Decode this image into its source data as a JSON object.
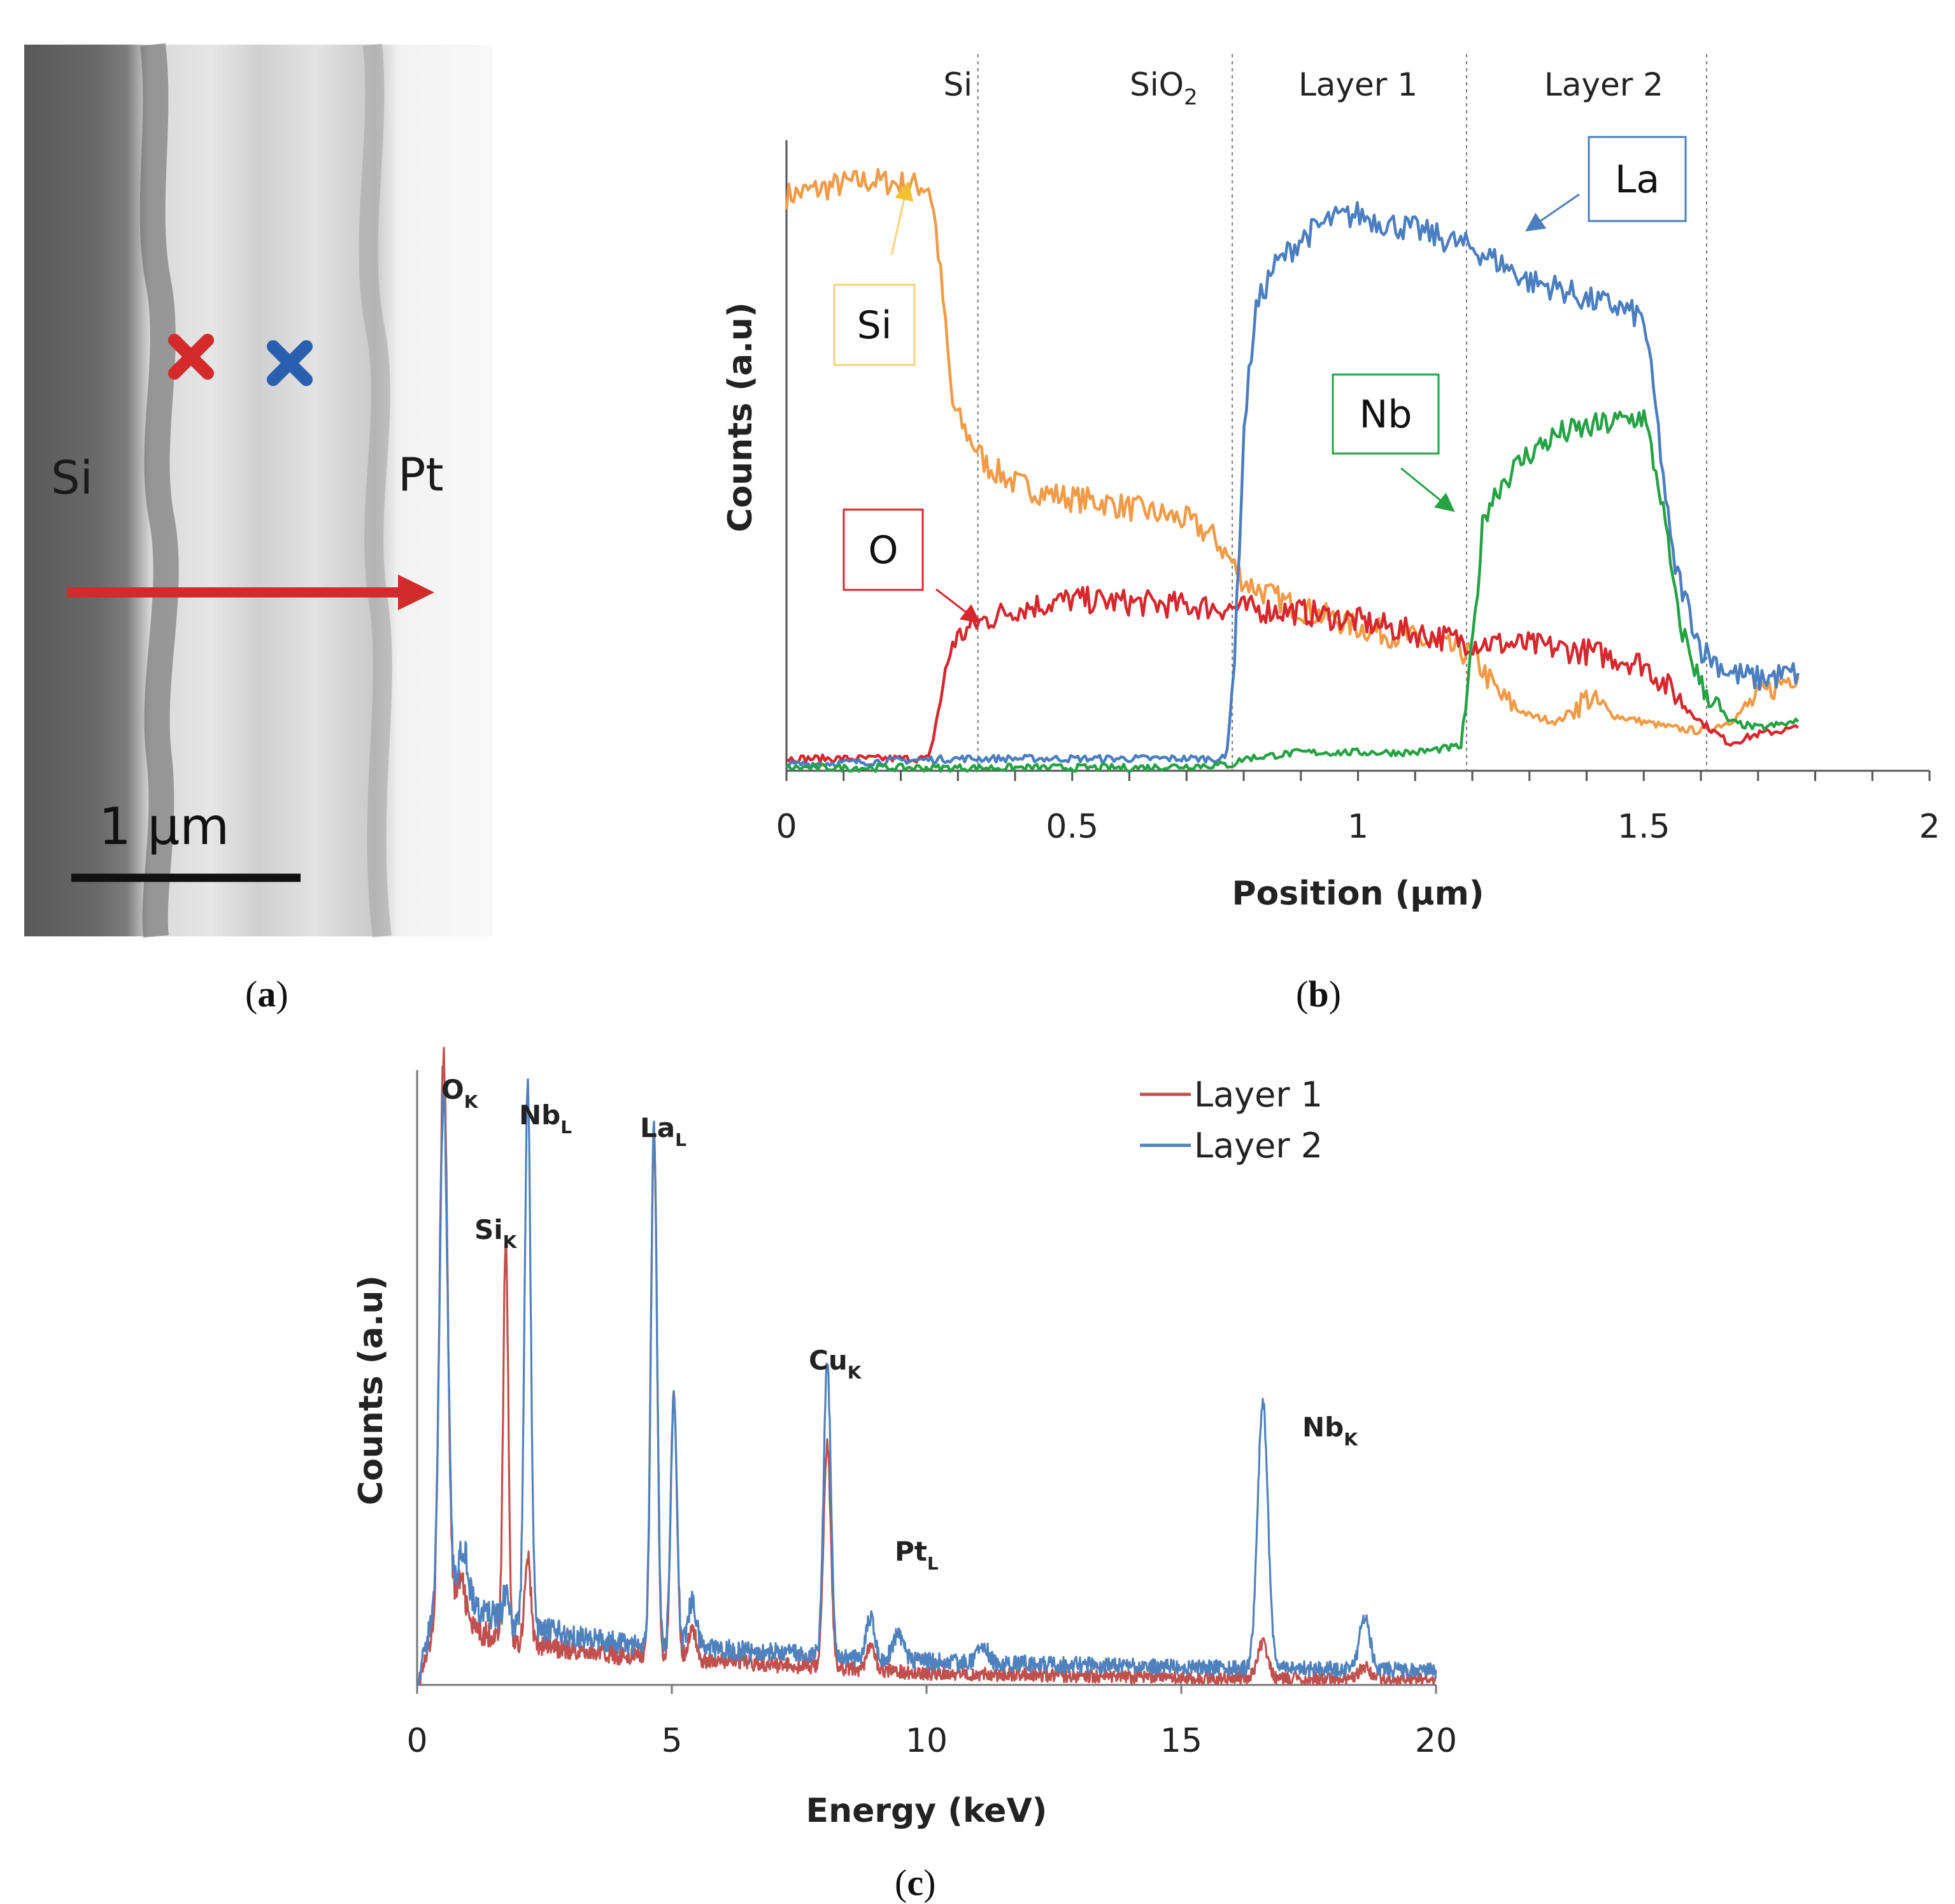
{
  "panel_labels": {
    "a": "a",
    "b": "b",
    "c": "c"
  },
  "colors": {
    "Si": "#f29a46",
    "O": "#d7272e",
    "La": "#4a7ebf",
    "Nb": "#24a244",
    "layer1": "#c0504d",
    "layer2": "#4f81bd",
    "arrow": "#d22b2b",
    "marker_red": "#d42a2a",
    "marker_blue": "#2a5fb0"
  },
  "sem_image": {
    "left_label": "Si",
    "right_label": "Pt",
    "scale_bar_label": "1 μm",
    "markers": [
      {
        "name": "layer-1-marker",
        "color": "#d42a2a"
      },
      {
        "name": "layer-2-marker",
        "color": "#2a5fb0"
      }
    ]
  },
  "chart_data": [
    {
      "id": "linescan",
      "type": "line",
      "xlabel": "Position (μm)",
      "ylabel": "Counts (a.u)",
      "xlim": [
        0,
        2
      ],
      "ylim": [
        0,
        1
      ],
      "x_ticks": [
        "0",
        "0.5",
        "1",
        "1.5",
        "2"
      ],
      "x_tick_values": [
        0,
        0.5,
        1,
        1.5,
        2
      ],
      "regions": [
        {
          "label": "Si",
          "sub": "",
          "center": 0.3
        },
        {
          "label": "SiO",
          "sub": "2",
          "center": 0.66
        },
        {
          "label": "Layer 1",
          "sub": "",
          "center": 1.0
        },
        {
          "label": "Layer 2",
          "sub": "",
          "center": 1.43
        }
      ],
      "boundaries": [
        0.335,
        0.78,
        1.19,
        1.61
      ],
      "series": [
        {
          "name": "Si",
          "color": "#f29a46",
          "callout_label": "Si",
          "points": [
            [
              0,
              0.94
            ],
            [
              0.05,
              0.95
            ],
            [
              0.1,
              0.96
            ],
            [
              0.15,
              0.965
            ],
            [
              0.2,
              0.96
            ],
            [
              0.25,
              0.955
            ],
            [
              0.26,
              0.9
            ],
            [
              0.275,
              0.76
            ],
            [
              0.29,
              0.6
            ],
            [
              0.31,
              0.56
            ],
            [
              0.33,
              0.53
            ],
            [
              0.35,
              0.5
            ],
            [
              0.4,
              0.47
            ],
            [
              0.45,
              0.455
            ],
            [
              0.5,
              0.445
            ],
            [
              0.55,
              0.44
            ],
            [
              0.6,
              0.43
            ],
            [
              0.65,
              0.42
            ],
            [
              0.7,
              0.41
            ],
            [
              0.75,
              0.38
            ],
            [
              0.78,
              0.34
            ],
            [
              0.8,
              0.31
            ],
            [
              0.85,
              0.285
            ],
            [
              0.9,
              0.265
            ],
            [
              1.0,
              0.235
            ],
            [
              1.1,
              0.215
            ],
            [
              1.2,
              0.19
            ],
            [
              1.25,
              0.12
            ],
            [
              1.3,
              0.09
            ],
            [
              1.35,
              0.08
            ],
            [
              1.4,
              0.12
            ],
            [
              1.45,
              0.09
            ],
            [
              1.5,
              0.08
            ],
            [
              1.55,
              0.07
            ],
            [
              1.6,
              0.065
            ],
            [
              1.65,
              0.08
            ],
            [
              1.7,
              0.12
            ],
            [
              1.75,
              0.15
            ],
            [
              1.77,
              0.16
            ]
          ]
        },
        {
          "name": "O",
          "color": "#d7272e",
          "callout_label": "O",
          "points": [
            [
              0,
              0.02
            ],
            [
              0.1,
              0.02
            ],
            [
              0.2,
              0.02
            ],
            [
              0.25,
              0.02
            ],
            [
              0.27,
              0.12
            ],
            [
              0.29,
              0.21
            ],
            [
              0.33,
              0.24
            ],
            [
              0.4,
              0.265
            ],
            [
              0.5,
              0.28
            ],
            [
              0.6,
              0.275
            ],
            [
              0.7,
              0.27
            ],
            [
              0.8,
              0.265
            ],
            [
              0.9,
              0.26
            ],
            [
              1.0,
              0.245
            ],
            [
              1.1,
              0.225
            ],
            [
              1.2,
              0.21
            ],
            [
              1.3,
              0.205
            ],
            [
              1.4,
              0.195
            ],
            [
              1.5,
              0.175
            ],
            [
              1.55,
              0.13
            ],
            [
              1.6,
              0.08
            ],
            [
              1.65,
              0.045
            ],
            [
              1.7,
              0.06
            ],
            [
              1.77,
              0.07
            ]
          ]
        },
        {
          "name": "La",
          "color": "#4a7ebf",
          "callout_label": "La",
          "points": [
            [
              0,
              0.01
            ],
            [
              0.3,
              0.02
            ],
            [
              0.6,
              0.02
            ],
            [
              0.77,
              0.02
            ],
            [
              0.785,
              0.2
            ],
            [
              0.8,
              0.55
            ],
            [
              0.82,
              0.75
            ],
            [
              0.85,
              0.82
            ],
            [
              0.9,
              0.87
            ],
            [
              0.95,
              0.9
            ],
            [
              1.0,
              0.91
            ],
            [
              1.05,
              0.895
            ],
            [
              1.1,
              0.885
            ],
            [
              1.15,
              0.87
            ],
            [
              1.2,
              0.855
            ],
            [
              1.25,
              0.83
            ],
            [
              1.3,
              0.8
            ],
            [
              1.35,
              0.79
            ],
            [
              1.4,
              0.77
            ],
            [
              1.45,
              0.76
            ],
            [
              1.5,
              0.74
            ],
            [
              1.52,
              0.6
            ],
            [
              1.55,
              0.35
            ],
            [
              1.6,
              0.2
            ],
            [
              1.65,
              0.16
            ],
            [
              1.7,
              0.15
            ],
            [
              1.77,
              0.16
            ]
          ]
        },
        {
          "name": "Nb",
          "color": "#24a244",
          "callout_label": "Nb",
          "points": [
            [
              0,
              0.005
            ],
            [
              0.3,
              0.005
            ],
            [
              0.6,
              0.005
            ],
            [
              0.78,
              0.01
            ],
            [
              0.8,
              0.02
            ],
            [
              0.9,
              0.03
            ],
            [
              1.0,
              0.03
            ],
            [
              1.1,
              0.03
            ],
            [
              1.18,
              0.04
            ],
            [
              1.2,
              0.2
            ],
            [
              1.22,
              0.42
            ],
            [
              1.25,
              0.47
            ],
            [
              1.3,
              0.52
            ],
            [
              1.35,
              0.55
            ],
            [
              1.4,
              0.56
            ],
            [
              1.45,
              0.57
            ],
            [
              1.5,
              0.58
            ],
            [
              1.53,
              0.45
            ],
            [
              1.56,
              0.25
            ],
            [
              1.6,
              0.14
            ],
            [
              1.65,
              0.08
            ],
            [
              1.7,
              0.07
            ],
            [
              1.77,
              0.08
            ]
          ]
        }
      ]
    },
    {
      "id": "spectrum",
      "type": "line",
      "xlabel": "Energy (keV)",
      "ylabel": "Counts (a.u)",
      "xlim": [
        0,
        20
      ],
      "ylim": [
        0,
        1
      ],
      "x_ticks": [
        "0",
        "5",
        "10",
        "15",
        "20"
      ],
      "x_tick_values": [
        0,
        5,
        10,
        15,
        20
      ],
      "legend_position": "top-right",
      "peaks": [
        {
          "label": "O",
          "sub": "K",
          "energy": 0.52
        },
        {
          "label": "Si",
          "sub": "K",
          "energy": 1.74
        },
        {
          "label": "Nb",
          "sub": "L",
          "energy": 2.17
        },
        {
          "label": "La",
          "sub": "L",
          "energy": 4.65
        },
        {
          "label": "Cu",
          "sub": "K",
          "energy": 8.05
        },
        {
          "label": "Pt",
          "sub": "L",
          "energy": 9.44
        },
        {
          "label": "Nb",
          "sub": "K",
          "energy": 16.6
        }
      ],
      "series": [
        {
          "name": "Layer 1",
          "color": "#c0504d",
          "baseline": [
            [
              0,
              0.05
            ],
            [
              0.8,
              0.1
            ],
            [
              2,
              0.07
            ],
            [
              4,
              0.05
            ],
            [
              6,
              0.04
            ],
            [
              8,
              0.03
            ],
            [
              10,
              0.02
            ],
            [
              15,
              0.012
            ],
            [
              20,
              0.01
            ]
          ],
          "peaks": [
            [
              0.52,
              0.98,
              0.08
            ],
            [
              0.85,
              0.08,
              0.1
            ],
            [
              1.74,
              0.68,
              0.05
            ],
            [
              2.17,
              0.15,
              0.06
            ],
            [
              4.65,
              0.9,
              0.06
            ],
            [
              5.04,
              0.45,
              0.06
            ],
            [
              5.4,
              0.05,
              0.08
            ],
            [
              8.05,
              0.38,
              0.07
            ],
            [
              8.9,
              0.04,
              0.08
            ],
            [
              16.6,
              0.06,
              0.1
            ],
            [
              18.6,
              0.02,
              0.1
            ]
          ]
        },
        {
          "name": "Layer 2",
          "color": "#4f81bd",
          "baseline": [
            [
              0,
              0.08
            ],
            [
              0.8,
              0.14
            ],
            [
              2,
              0.1
            ],
            [
              4,
              0.07
            ],
            [
              6,
              0.06
            ],
            [
              8,
              0.05
            ],
            [
              10,
              0.04
            ],
            [
              15,
              0.03
            ],
            [
              20,
              0.025
            ]
          ],
          "peaks": [
            [
              0.52,
              0.88,
              0.08
            ],
            [
              0.9,
              0.1,
              0.1
            ],
            [
              1.74,
              0.05,
              0.05
            ],
            [
              2.17,
              0.92,
              0.06
            ],
            [
              4.65,
              0.88,
              0.06
            ],
            [
              5.04,
              0.42,
              0.06
            ],
            [
              5.4,
              0.08,
              0.08
            ],
            [
              8.05,
              0.5,
              0.07
            ],
            [
              8.9,
              0.07,
              0.08
            ],
            [
              9.44,
              0.04,
              0.1
            ],
            [
              11.1,
              0.03,
              0.1
            ],
            [
              16.6,
              0.45,
              0.1
            ],
            [
              18.6,
              0.09,
              0.1
            ]
          ]
        }
      ]
    }
  ]
}
